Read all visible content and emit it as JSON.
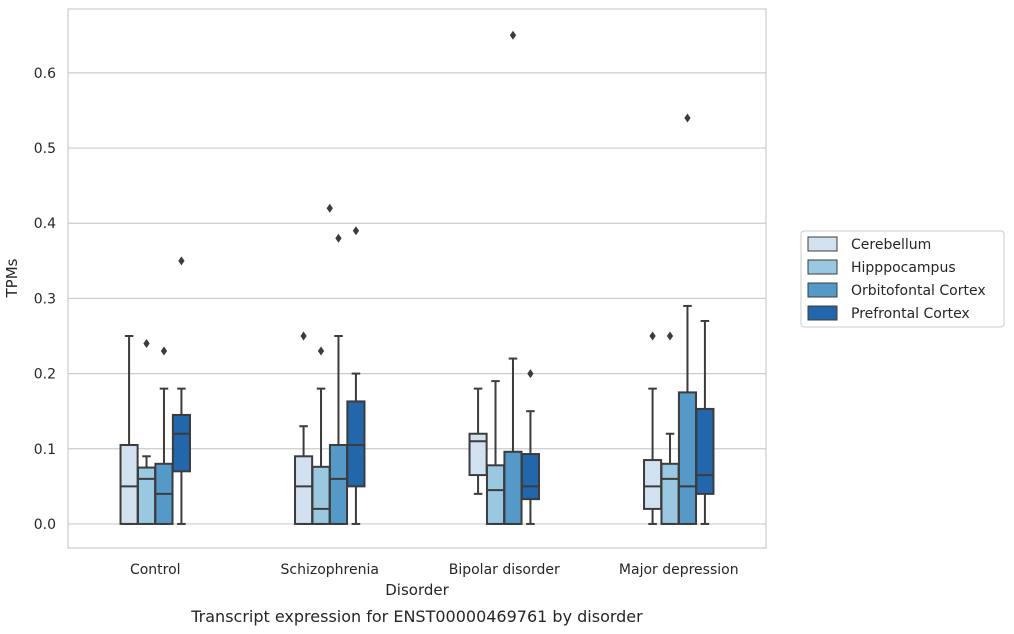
{
  "chart_data": {
    "type": "box",
    "caption": "Transcript expression for ENST00000469761 by disorder",
    "xlabel": "Disorder",
    "ylabel": "TPMs",
    "ylim": [
      -0.032,
      0.685
    ],
    "yticks": [
      0.0,
      0.1,
      0.2,
      0.3,
      0.4,
      0.5,
      0.6
    ],
    "ytick_labels": [
      "0.0",
      "0.1",
      "0.2",
      "0.3",
      "0.4",
      "0.5",
      "0.6"
    ],
    "grid": "horizontal",
    "legend_position": "right, outside",
    "categories": [
      "Control",
      "Schizophrenia",
      "Bipolar disorder",
      "Major depression"
    ],
    "series": [
      {
        "name": "Cerebellum",
        "color": "#d1e1ef",
        "boxes": [
          {
            "whisker_low": 0.0,
            "q1": 0.0,
            "median": 0.05,
            "q3": 0.105,
            "whisker_high": 0.25,
            "outliers": []
          },
          {
            "whisker_low": 0.0,
            "q1": 0.0,
            "median": 0.05,
            "q3": 0.09,
            "whisker_high": 0.13,
            "outliers": [
              0.25
            ]
          },
          {
            "whisker_low": 0.04,
            "q1": 0.065,
            "median": 0.11,
            "q3": 0.12,
            "whisker_high": 0.18,
            "outliers": []
          },
          {
            "whisker_low": 0.0,
            "q1": 0.02,
            "median": 0.05,
            "q3": 0.085,
            "whisker_high": 0.18,
            "outliers": [
              0.25
            ]
          }
        ]
      },
      {
        "name": "Hipppocampus",
        "color": "#9ac8e0",
        "boxes": [
          {
            "whisker_low": 0.0,
            "q1": 0.0,
            "median": 0.06,
            "q3": 0.075,
            "whisker_high": 0.09,
            "outliers": [
              0.24
            ]
          },
          {
            "whisker_low": 0.0,
            "q1": 0.0,
            "median": 0.02,
            "q3": 0.076,
            "whisker_high": 0.18,
            "outliers": [
              0.23
            ]
          },
          {
            "whisker_low": 0.0,
            "q1": 0.0,
            "median": 0.045,
            "q3": 0.078,
            "whisker_high": 0.19,
            "outliers": []
          },
          {
            "whisker_low": 0.0,
            "q1": 0.0,
            "median": 0.06,
            "q3": 0.08,
            "whisker_high": 0.12,
            "outliers": [
              0.25
            ]
          }
        ]
      },
      {
        "name": "Orbitofontal Cortex",
        "color": "#5499c7",
        "boxes": [
          {
            "whisker_low": 0.0,
            "q1": 0.0,
            "median": 0.04,
            "q3": 0.08,
            "whisker_high": 0.18,
            "outliers": [
              0.23
            ]
          },
          {
            "whisker_low": 0.0,
            "q1": 0.0,
            "median": 0.06,
            "q3": 0.105,
            "whisker_high": 0.25,
            "outliers": [
              0.38
            ]
          },
          {
            "whisker_low": 0.0,
            "q1": 0.0,
            "median": 0.0,
            "q3": 0.096,
            "whisker_high": 0.22,
            "outliers": [
              0.65
            ]
          },
          {
            "whisker_low": 0.0,
            "q1": 0.0,
            "median": 0.05,
            "q3": 0.175,
            "whisker_high": 0.29,
            "outliers": [
              0.54
            ]
          }
        ]
      },
      {
        "name": "Prefrontal Cortex",
        "color": "#2267ac",
        "boxes": [
          {
            "whisker_low": 0.0,
            "q1": 0.07,
            "median": 0.12,
            "q3": 0.145,
            "whisker_high": 0.18,
            "outliers": [
              0.35
            ]
          },
          {
            "whisker_low": 0.0,
            "q1": 0.05,
            "median": 0.105,
            "q3": 0.163,
            "whisker_high": 0.2,
            "outliers": [
              0.39
            ]
          },
          {
            "whisker_low": 0.0,
            "q1": 0.033,
            "median": 0.05,
            "q3": 0.093,
            "whisker_high": 0.15,
            "outliers": [
              0.2
            ]
          },
          {
            "whisker_low": 0.0,
            "q1": 0.04,
            "median": 0.065,
            "q3": 0.153,
            "whisker_high": 0.27,
            "outliers": []
          }
        ]
      }
    ],
    "extra_outliers": [
      {
        "category_index": 1,
        "series_index": 0,
        "value": 0.42
      }
    ]
  }
}
